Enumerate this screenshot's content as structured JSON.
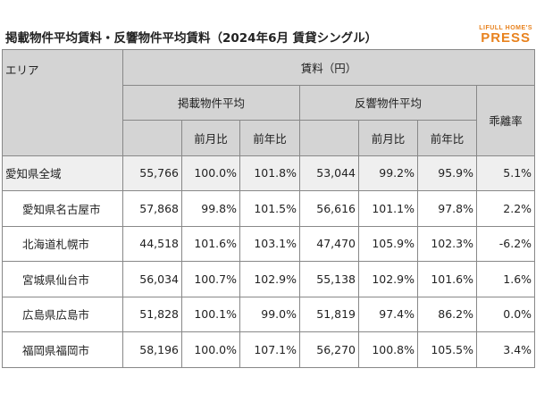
{
  "header": {
    "title": "掲載物件平均賃料・反響物件平均賃料（2024年6月 賃貸シングル）",
    "logo_top": "LIFULL HOME'S",
    "logo_main": "PRESS"
  },
  "table": {
    "area_header": "エリア",
    "rent_header": "賃料（円）",
    "listed_header": "掲載物件平均",
    "inquiry_header": "反響物件平均",
    "gap_header": "乖離率",
    "listed_sub": [
      "前月比",
      "前年比"
    ],
    "inquiry_sub": [
      "前月比",
      "前年比"
    ],
    "rows": [
      [
        "愛知県全域",
        "55,766",
        "100.0%",
        "101.8%",
        "53,044",
        "99.2%",
        "95.9%",
        "5.1%"
      ],
      [
        "愛知県名古屋市",
        "57,868",
        "99.8%",
        "101.5%",
        "56,616",
        "101.1%",
        "97.8%",
        "2.2%"
      ],
      [
        "北海道札幌市",
        "44,518",
        "101.6%",
        "103.1%",
        "47,470",
        "105.9%",
        "102.3%",
        "-6.2%"
      ],
      [
        "宮城県仙台市",
        "56,034",
        "100.7%",
        "102.9%",
        "55,138",
        "102.9%",
        "101.6%",
        "1.6%"
      ],
      [
        "広島県広島市",
        "51,828",
        "100.1%",
        "99.0%",
        "51,819",
        "97.4%",
        "86.2%",
        "0.0%"
      ],
      [
        "福岡県福岡市",
        "58,196",
        "100.0%",
        "107.1%",
        "56,270",
        "100.8%",
        "105.5%",
        "3.4%"
      ]
    ]
  }
}
